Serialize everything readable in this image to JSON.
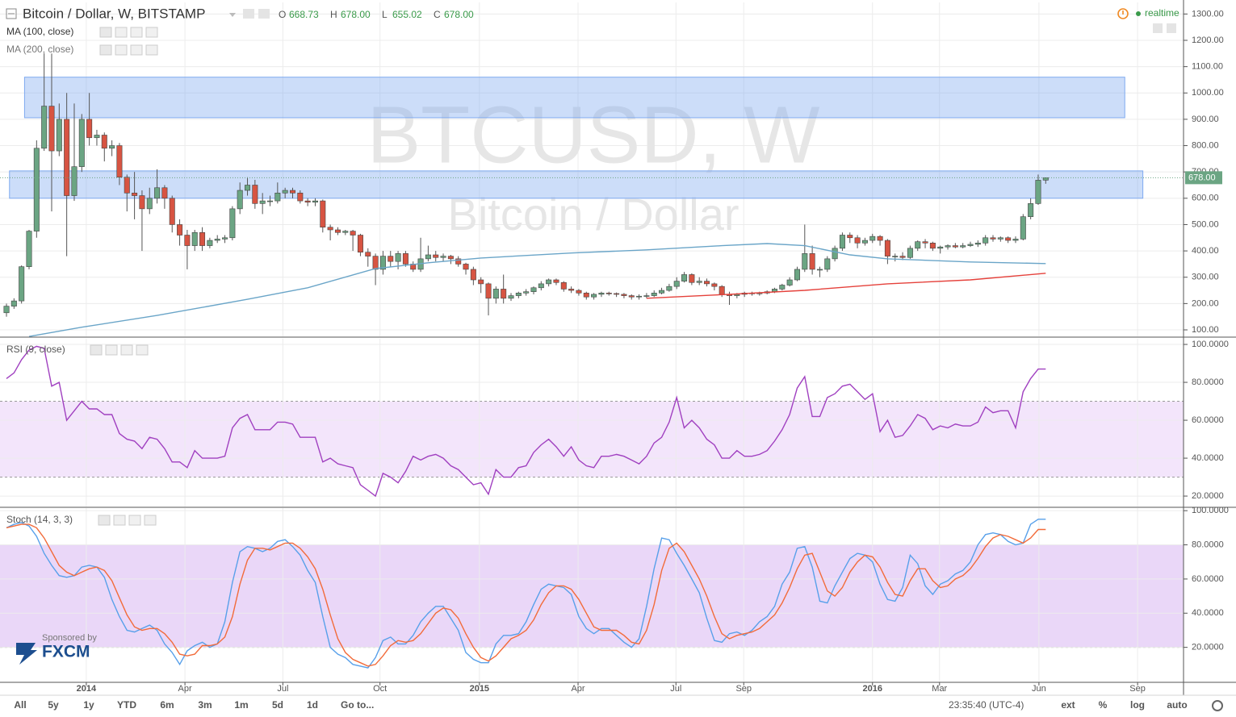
{
  "header": {
    "title": "Bitcoin / Dollar, W, BITSTAMP",
    "ohlc": [
      {
        "key": "O",
        "value": "668.73"
      },
      {
        "key": "H",
        "value": "678.00"
      },
      {
        "key": "L",
        "value": "655.02"
      },
      {
        "key": "C",
        "value": "678.00"
      }
    ],
    "status": "realtime",
    "sponsor": "Sponsored by",
    "sponsor_name": "FXCM"
  },
  "toolbar": {
    "ranges": [
      "All",
      "5y",
      "1y",
      "YTD",
      "6m",
      "3m",
      "1m",
      "5d",
      "1d"
    ],
    "goto": "Go to...",
    "time": "23:35:40 (UTC-4)",
    "options": [
      "ext",
      "%",
      "log",
      "auto"
    ]
  },
  "chart_data": [
    {
      "type": "candlestick",
      "watermark": "BTCUSD, W",
      "watermark_sub": "Bitcoin / Dollar",
      "xlim": [
        -0.86,
        156.3
      ],
      "ylim": [
        75.5,
        1344
      ],
      "yticks": [
        {
          "value": 100,
          "label": "100.00"
        },
        {
          "value": 200,
          "label": "200.00"
        },
        {
          "value": 300,
          "label": "300.00"
        },
        {
          "value": 400,
          "label": "400.00"
        },
        {
          "value": 500,
          "label": "500.00"
        },
        {
          "value": 600,
          "label": "600.00"
        },
        {
          "value": 700,
          "label": "700.00"
        },
        {
          "value": 800,
          "label": "800.00"
        },
        {
          "value": 900,
          "label": "900.00"
        },
        {
          "value": 1000,
          "label": "1000.00"
        },
        {
          "value": 1100,
          "label": "1100.00"
        },
        {
          "value": 1200,
          "label": "1200.00"
        },
        {
          "value": 1300,
          "label": "1300.00"
        }
      ],
      "grid": true,
      "up_color": "#6ba583",
      "down_color": "#d75442",
      "open": [
        165,
        190,
        210,
        340,
        475,
        790,
        950,
        780,
        900,
        610,
        720,
        900,
        830,
        840,
        790,
        800,
        680,
        620,
        610,
        560,
        600,
        640,
        600,
        500,
        460,
        420,
        470,
        420,
        440,
        445,
        450,
        560,
        630,
        650,
        580,
        590,
        590,
        620,
        630,
        620,
        590,
        585,
        590,
        490,
        480,
        470,
        475,
        460,
        395,
        380,
        330,
        380,
        360,
        390,
        350,
        330,
        370,
        385,
        375,
        380,
        370,
        350,
        330,
        290,
        275,
        220,
        255,
        220,
        230,
        240,
        245,
        260,
        275,
        290,
        280,
        255,
        250,
        240,
        225,
        235,
        240,
        238,
        235,
        230,
        225,
        228,
        230,
        240,
        250,
        265,
        285,
        310,
        280,
        285,
        275,
        265,
        235,
        230,
        235,
        240,
        238,
        240,
        245,
        255,
        270,
        290,
        330,
        390,
        330,
        330,
        370,
        410,
        460,
        450,
        430,
        440,
        455,
        440,
        380,
        380,
        375,
        410,
        435,
        430,
        410,
        415,
        420,
        415,
        420,
        425,
        430,
        450,
        445,
        450,
        440,
        445,
        530,
        580,
        668.73
      ],
      "high": [
        200,
        220,
        345,
        480,
        820,
        1150,
        1150,
        960,
        1000,
        960,
        920,
        1000,
        860,
        850,
        820,
        810,
        690,
        700,
        630,
        640,
        710,
        650,
        610,
        520,
        480,
        480,
        490,
        450,
        460,
        460,
        570,
        660,
        680,
        670,
        620,
        610,
        660,
        640,
        640,
        630,
        600,
        600,
        595,
        500,
        490,
        480,
        480,
        465,
        410,
        390,
        400,
        400,
        400,
        400,
        360,
        450,
        420,
        400,
        390,
        385,
        380,
        355,
        340,
        300,
        280,
        265,
        310,
        240,
        245,
        255,
        265,
        285,
        295,
        295,
        285,
        265,
        255,
        245,
        240,
        245,
        245,
        242,
        240,
        235,
        235,
        240,
        250,
        260,
        275,
        300,
        320,
        315,
        300,
        295,
        280,
        270,
        245,
        240,
        245,
        245,
        245,
        250,
        260,
        275,
        300,
        340,
        500,
        420,
        340,
        380,
        420,
        470,
        470,
        460,
        450,
        465,
        460,
        445,
        390,
        395,
        420,
        440,
        445,
        435,
        420,
        425,
        430,
        430,
        435,
        440,
        460,
        460,
        455,
        455,
        455,
        540,
        600,
        690,
        678
      ],
      "low": [
        150,
        180,
        200,
        330,
        450,
        780,
        550,
        760,
        380,
        590,
        700,
        800,
        800,
        740,
        760,
        650,
        550,
        520,
        400,
        540,
        580,
        560,
        470,
        420,
        330,
        400,
        400,
        410,
        430,
        430,
        440,
        540,
        610,
        560,
        540,
        570,
        580,
        600,
        600,
        580,
        570,
        570,
        470,
        440,
        460,
        460,
        400,
        380,
        340,
        270,
        310,
        340,
        330,
        340,
        320,
        320,
        360,
        360,
        360,
        350,
        340,
        310,
        270,
        240,
        155,
        200,
        200,
        210,
        220,
        230,
        235,
        250,
        265,
        270,
        245,
        240,
        230,
        215,
        215,
        225,
        230,
        225,
        220,
        215,
        215,
        220,
        225,
        235,
        245,
        255,
        280,
        270,
        270,
        265,
        250,
        225,
        195,
        220,
        225,
        230,
        230,
        235,
        240,
        250,
        265,
        285,
        320,
        310,
        300,
        320,
        360,
        400,
        430,
        410,
        420,
        430,
        420,
        350,
        360,
        365,
        370,
        400,
        410,
        400,
        390,
        405,
        410,
        410,
        415,
        415,
        420,
        435,
        435,
        430,
        430,
        440,
        520,
        575,
        655.02
      ],
      "close": [
        190,
        210,
        340,
        475,
        790,
        950,
        780,
        900,
        610,
        720,
        900,
        830,
        840,
        790,
        800,
        680,
        620,
        610,
        560,
        600,
        640,
        600,
        500,
        460,
        420,
        470,
        420,
        440,
        445,
        450,
        560,
        630,
        650,
        580,
        590,
        590,
        620,
        630,
        620,
        590,
        585,
        590,
        490,
        480,
        470,
        475,
        460,
        395,
        380,
        330,
        380,
        360,
        390,
        350,
        330,
        370,
        385,
        375,
        380,
        370,
        350,
        330,
        290,
        275,
        220,
        255,
        220,
        230,
        240,
        245,
        260,
        275,
        290,
        280,
        255,
        250,
        240,
        225,
        235,
        240,
        238,
        235,
        230,
        225,
        228,
        230,
        240,
        250,
        265,
        285,
        310,
        280,
        285,
        275,
        265,
        235,
        230,
        235,
        240,
        238,
        240,
        245,
        255,
        270,
        290,
        330,
        390,
        330,
        330,
        370,
        410,
        460,
        450,
        430,
        440,
        455,
        440,
        380,
        380,
        375,
        410,
        435,
        430,
        410,
        415,
        420,
        415,
        420,
        425,
        430,
        450,
        445,
        450,
        440,
        445,
        530,
        580,
        668.73,
        678
      ],
      "last_label": {
        "value": 678,
        "label": "678.00"
      },
      "zones": [
        {
          "x": [
            2.4,
            148.5
          ],
          "y": [
            906,
            1060
          ]
        },
        {
          "x": [
            0.4,
            150.9
          ],
          "y": [
            600,
            704
          ]
        }
      ],
      "zone_color": "#7faaf0",
      "series": [
        {
          "name": "MA (100, close)",
          "color": "#6aa5c8",
          "x": [
            3,
            10,
            20,
            32,
            40,
            49,
            56,
            63,
            75,
            85,
            95,
            101,
            106,
            112,
            117,
            128,
            138
          ],
          "values": [
            75,
            110,
            155,
            216,
            260,
            333,
            355,
            373,
            392,
            404,
            420,
            428,
            420,
            385,
            370,
            358,
            352
          ]
        },
        {
          "name": "MA (200, close)",
          "color": "#e5413b",
          "x": [
            85,
            96,
            106,
            117,
            128,
            138
          ],
          "values": [
            220,
            235,
            250,
            275,
            290,
            315
          ]
        }
      ]
    },
    {
      "type": "line",
      "ylim": [
        14.5,
        103
      ],
      "yticks": [
        {
          "value": 20,
          "label": "20.0000"
        },
        {
          "value": 40,
          "label": "40.0000"
        },
        {
          "value": 60,
          "label": "60.0000"
        },
        {
          "value": 80,
          "label": "80.0000"
        },
        {
          "value": 100,
          "label": "100.0000"
        }
      ],
      "grid": true,
      "bands": [
        30,
        70
      ],
      "band_color": "#e9d0f7",
      "series": [
        {
          "name": "RSI (9, close)",
          "color": "#a040c0",
          "values": [
            82,
            85,
            92,
            97,
            99,
            98,
            78,
            80,
            60,
            65,
            70,
            66,
            66,
            63,
            63,
            53,
            50,
            49,
            45,
            51,
            50,
            45,
            38,
            38,
            35,
            44,
            40,
            40,
            40,
            41,
            56,
            61,
            63,
            55,
            55,
            55,
            59,
            59,
            58,
            51,
            51,
            51,
            38,
            40,
            37,
            36,
            35,
            26,
            23,
            20,
            32,
            30,
            27,
            33,
            41,
            39,
            41,
            42,
            40,
            36,
            34,
            30,
            26,
            27,
            21,
            34,
            30,
            30,
            35,
            36,
            43,
            47,
            50,
            46,
            41,
            46,
            39,
            36,
            35,
            41,
            41,
            42,
            41,
            39,
            37,
            41,
            48,
            51,
            59,
            72,
            56,
            60,
            56,
            50,
            47,
            40,
            40,
            44,
            41,
            41,
            42,
            44,
            49,
            55,
            63,
            77,
            83,
            62,
            62,
            72,
            74,
            78,
            79,
            75,
            71,
            74,
            54,
            60,
            51,
            52,
            57,
            63,
            61,
            55,
            57,
            56,
            58,
            57,
            57,
            59,
            67,
            64,
            65,
            65,
            56,
            75,
            82,
            87,
            87
          ]
        }
      ]
    },
    {
      "type": "line",
      "ylim": [
        0,
        101.5
      ],
      "yticks": [
        {
          "value": 20,
          "label": "20.0000"
        },
        {
          "value": 40,
          "label": "40.0000"
        },
        {
          "value": 60,
          "label": "60.0000"
        },
        {
          "value": 80,
          "label": "80.0000"
        },
        {
          "value": 100,
          "label": "100.0000"
        }
      ],
      "grid": true,
      "bands": [
        20,
        80
      ],
      "band_color": "#d9b6f2",
      "xticks": [
        {
          "value": 10.6,
          "label": "2014"
        },
        {
          "value": 23.7,
          "label": "Apr"
        },
        {
          "value": 36.7,
          "label": "Jul"
        },
        {
          "value": 49.6,
          "label": "Oct"
        },
        {
          "value": 62.8,
          "label": "2015"
        },
        {
          "value": 75.9,
          "label": "Apr"
        },
        {
          "value": 88.9,
          "label": "Jul"
        },
        {
          "value": 97.9,
          "label": "Sep"
        },
        {
          "value": 115,
          "label": "2016"
        },
        {
          "value": 123.9,
          "label": "Mar"
        },
        {
          "value": 137.1,
          "label": "Jun"
        },
        {
          "value": 150.2,
          "label": "Sep"
        }
      ],
      "legend": "Stoch (14, 3, 3)",
      "series": [
        {
          "color": "#58a0ea",
          "values": [
            90,
            92,
            93,
            91,
            85,
            75,
            68,
            62,
            61,
            62,
            67,
            68,
            67,
            61,
            48,
            38,
            30,
            29,
            31,
            33,
            30,
            22,
            17,
            10,
            18,
            21,
            23,
            20,
            22,
            35,
            58,
            76,
            79,
            78,
            76,
            78,
            82,
            83,
            79,
            74,
            65,
            58,
            38,
            20,
            16,
            14,
            10,
            9,
            8,
            14,
            24,
            26,
            22,
            22,
            27,
            35,
            40,
            44,
            44,
            37,
            30,
            17,
            13,
            11,
            11,
            22,
            27,
            27,
            28,
            35,
            45,
            54,
            57,
            56,
            55,
            51,
            38,
            31,
            28,
            31,
            31,
            27,
            23,
            20,
            25,
            44,
            66,
            84,
            83,
            75,
            68,
            60,
            52,
            37,
            24,
            23,
            28,
            29,
            27,
            30,
            35,
            38,
            44,
            57,
            64,
            78,
            79,
            67,
            47,
            46,
            56,
            64,
            72,
            75,
            74,
            70,
            57,
            48,
            47,
            55,
            74,
            69,
            56,
            51,
            57,
            59,
            63,
            65,
            70,
            80,
            86,
            87,
            86,
            82,
            80,
            81,
            92,
            95,
            95
          ]
        },
        {
          "color": "#f26b3a",
          "values": [
            90,
            91,
            92,
            92,
            90,
            84,
            76,
            68,
            64,
            62,
            64,
            66,
            67,
            65,
            59,
            49,
            39,
            32,
            30,
            31,
            31,
            28,
            23,
            16,
            15,
            16,
            21,
            21,
            22,
            26,
            38,
            57,
            71,
            78,
            78,
            77,
            79,
            81,
            81,
            78,
            73,
            66,
            54,
            39,
            25,
            17,
            13,
            11,
            9,
            10,
            15,
            21,
            24,
            23,
            24,
            28,
            34,
            40,
            43,
            42,
            37,
            28,
            20,
            14,
            12,
            15,
            20,
            25,
            27,
            30,
            36,
            45,
            52,
            56,
            56,
            54,
            48,
            40,
            32,
            30,
            30,
            30,
            27,
            23,
            22,
            30,
            45,
            65,
            78,
            81,
            76,
            68,
            60,
            50,
            38,
            28,
            25,
            27,
            28,
            29,
            31,
            35,
            39,
            46,
            55,
            66,
            74,
            75,
            64,
            53,
            50,
            55,
            64,
            70,
            74,
            73,
            67,
            58,
            51,
            50,
            59,
            66,
            66,
            59,
            55,
            56,
            60,
            62,
            66,
            72,
            79,
            84,
            86,
            85,
            83,
            81,
            84,
            89,
            89
          ]
        }
      ]
    }
  ]
}
